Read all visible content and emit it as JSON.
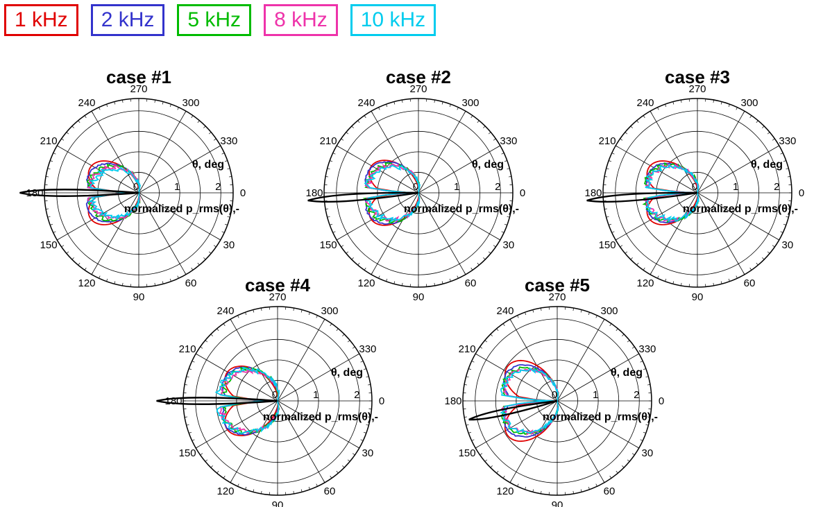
{
  "legend": [
    {
      "label": "1 kHz",
      "color": "#e00000"
    },
    {
      "label": "2 kHz",
      "color": "#3333cc"
    },
    {
      "label": "5 kHz",
      "color": "#00bb00"
    },
    {
      "label": "8 kHz",
      "color": "#ee33aa"
    },
    {
      "label": "10 kHz",
      "color": "#00ccee"
    }
  ],
  "chart_data": [
    {
      "type": "polar",
      "title": "case #1",
      "r_label": "normalized p_rms(θ),-",
      "theta_label": "θ, deg",
      "r_ticks": [
        "0",
        "1",
        "2"
      ],
      "rlim": [
        0,
        2
      ],
      "theta_ticks": [
        "0",
        "30",
        "60",
        "90",
        "120",
        "150",
        "180",
        "210",
        "240",
        "270",
        "300",
        "330"
      ],
      "grid": true,
      "series": [
        {
          "name": "1 kHz",
          "color": "#e00000",
          "lobe_angle_deg": 32,
          "max": 1.45,
          "shape": 0.55,
          "noise": 0.0
        },
        {
          "name": "2 kHz",
          "color": "#3333cc",
          "lobe_angle_deg": 25,
          "max": 1.35,
          "shape": 0.8,
          "noise": 0.02
        },
        {
          "name": "5 kHz",
          "color": "#00bb00",
          "lobe_angle_deg": 20,
          "max": 1.25,
          "shape": 1.0,
          "noise": 0.06
        },
        {
          "name": "8 kHz",
          "color": "#ee33aa",
          "lobe_angle_deg": 15,
          "max": 1.2,
          "shape": 1.1,
          "noise": 0.07
        },
        {
          "name": "10 kHz",
          "color": "#00ccee",
          "lobe_angle_deg": 10,
          "max": 1.15,
          "shape": 1.15,
          "noise": 0.09
        }
      ],
      "mean_beam": {
        "color": "#000000",
        "angle_deg": 180,
        "length": 2.9,
        "half_width": 0.16
      }
    },
    {
      "type": "polar",
      "title": "case #2",
      "r_label": "normalized p_rms(θ),-",
      "theta_label": "θ, deg",
      "r_ticks": [
        "0",
        "1",
        "2"
      ],
      "rlim": [
        0,
        2
      ],
      "theta_ticks": [
        "0",
        "30",
        "60",
        "90",
        "120",
        "150",
        "180",
        "210",
        "240",
        "270",
        "300",
        "330"
      ],
      "grid": true,
      "series": [
        {
          "name": "1 kHz",
          "color": "#e00000",
          "lobe_angle_deg": 34,
          "max": 1.45,
          "shape": 0.55,
          "noise": 0.0
        },
        {
          "name": "2 kHz",
          "color": "#3333cc",
          "lobe_angle_deg": 27,
          "max": 1.4,
          "shape": 0.8,
          "noise": 0.02
        },
        {
          "name": "5 kHz",
          "color": "#00bb00",
          "lobe_angle_deg": 22,
          "max": 1.3,
          "shape": 1.0,
          "noise": 0.06
        },
        {
          "name": "8 kHz",
          "color": "#ee33aa",
          "lobe_angle_deg": 16,
          "max": 1.25,
          "shape": 1.1,
          "noise": 0.07
        },
        {
          "name": "10 kHz",
          "color": "#00ccee",
          "lobe_angle_deg": 12,
          "max": 1.25,
          "shape": 1.2,
          "noise": 0.09
        }
      ],
      "mean_beam": {
        "color": "#000000",
        "angle_deg": 176,
        "length": 2.7,
        "half_width": 0.16
      }
    },
    {
      "type": "polar",
      "title": "case #3",
      "r_label": "normalized p_rms(θ),-",
      "theta_label": "θ, deg",
      "r_ticks": [
        "0",
        "1",
        "2"
      ],
      "rlim": [
        0,
        2
      ],
      "theta_ticks": [
        "0",
        "30",
        "60",
        "90",
        "120",
        "150",
        "180",
        "210",
        "240",
        "270",
        "300",
        "330"
      ],
      "grid": true,
      "series": [
        {
          "name": "1 kHz",
          "color": "#e00000",
          "lobe_angle_deg": 32,
          "max": 1.45,
          "shape": 0.55,
          "noise": 0.0
        },
        {
          "name": "2 kHz",
          "color": "#3333cc",
          "lobe_angle_deg": 26,
          "max": 1.35,
          "shape": 0.8,
          "noise": 0.02
        },
        {
          "name": "5 kHz",
          "color": "#00bb00",
          "lobe_angle_deg": 20,
          "max": 1.3,
          "shape": 1.0,
          "noise": 0.06
        },
        {
          "name": "8 kHz",
          "color": "#ee33aa",
          "lobe_angle_deg": 15,
          "max": 1.25,
          "shape": 1.1,
          "noise": 0.07
        },
        {
          "name": "10 kHz",
          "color": "#00ccee",
          "lobe_angle_deg": 12,
          "max": 1.25,
          "shape": 1.15,
          "noise": 0.09
        }
      ],
      "mean_beam": {
        "color": "#000000",
        "angle_deg": 176,
        "length": 2.7,
        "half_width": 0.16
      }
    },
    {
      "type": "polar",
      "title": "case #4",
      "r_label": "normalized p_rms(θ),-",
      "theta_label": "θ, deg",
      "r_ticks": [
        "0",
        "1",
        "2"
      ],
      "rlim": [
        0,
        2
      ],
      "theta_ticks": [
        "0",
        "30",
        "60",
        "90",
        "120",
        "150",
        "180",
        "210",
        "240",
        "270",
        "300",
        "330"
      ],
      "grid": true,
      "series": [
        {
          "name": "1 kHz",
          "color": "#e00000",
          "lobe_angle_deg": 34,
          "max": 1.55,
          "shape": 0.55,
          "noise": 0.0
        },
        {
          "name": "2 kHz",
          "color": "#3333cc",
          "lobe_angle_deg": 30,
          "max": 1.5,
          "shape": 0.75,
          "noise": 0.02
        },
        {
          "name": "5 kHz",
          "color": "#00bb00",
          "lobe_angle_deg": 26,
          "max": 1.4,
          "shape": 0.95,
          "noise": 0.08
        },
        {
          "name": "8 kHz",
          "color": "#ee33aa",
          "lobe_angle_deg": 12,
          "max": 1.4,
          "shape": 1.25,
          "noise": 0.07
        },
        {
          "name": "10 kHz",
          "color": "#00ccee",
          "lobe_angle_deg": 8,
          "max": 1.45,
          "shape": 1.35,
          "noise": 0.09
        }
      ],
      "mean_beam": {
        "color": "#000000",
        "angle_deg": 180,
        "length": 2.95,
        "half_width": 0.16
      }
    },
    {
      "type": "polar",
      "title": "case #5",
      "r_label": "normalized p_rms(θ),-",
      "theta_label": "θ, deg",
      "r_ticks": [
        "0",
        "1",
        "2"
      ],
      "rlim": [
        0,
        2
      ],
      "theta_ticks": [
        "0",
        "30",
        "60",
        "90",
        "120",
        "150",
        "180",
        "210",
        "240",
        "270",
        "300",
        "330"
      ],
      "grid": true,
      "series": [
        {
          "name": "1 kHz",
          "color": "#e00000",
          "lobe_angle_deg": 42,
          "max": 1.7,
          "shape": 0.55,
          "noise": 0.0
        },
        {
          "name": "2 kHz",
          "color": "#3333cc",
          "lobe_angle_deg": 36,
          "max": 1.55,
          "shape": 0.7,
          "noise": 0.02
        },
        {
          "name": "5 kHz",
          "color": "#00bb00",
          "lobe_angle_deg": 30,
          "max": 1.45,
          "shape": 0.85,
          "noise": 0.05
        },
        {
          "name": "8 kHz",
          "color": "#ee33aa",
          "lobe_angle_deg": 28,
          "max": 1.4,
          "shape": 0.9,
          "noise": 0.06
        },
        {
          "name": "10 kHz",
          "color": "#00ccee",
          "lobe_angle_deg": 24,
          "max": 1.4,
          "shape": 0.95,
          "noise": 0.07
        }
      ],
      "mean_beam": {
        "color": "#000000",
        "angle_deg": 168,
        "length": 2.2,
        "half_width": 0.14
      }
    }
  ]
}
